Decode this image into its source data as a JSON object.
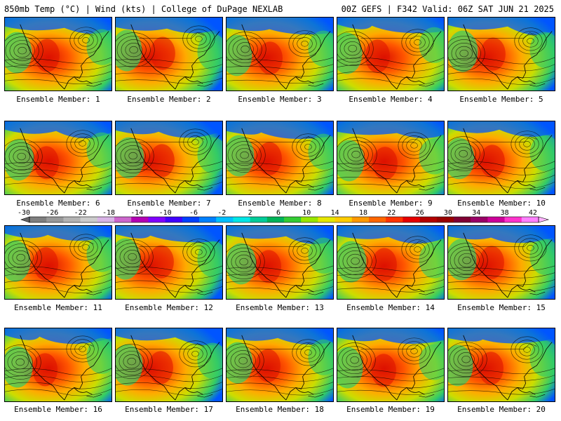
{
  "header": {
    "left_title": "850mb Temp (°C) | Wind (kts) | College of DuPage NEXLAB",
    "right_title": "00Z GEFS | F342 Valid: 06Z SAT JUN 21 2025"
  },
  "members": [
    "Ensemble Member: 1",
    "Ensemble Member: 2",
    "Ensemble Member: 3",
    "Ensemble Member: 4",
    "Ensemble Member: 5",
    "Ensemble Member: 6",
    "Ensemble Member: 7",
    "Ensemble Member: 8",
    "Ensemble Member: 9",
    "Ensemble Member: 10",
    "Ensemble Member: 11",
    "Ensemble Member: 12",
    "Ensemble Member: 13",
    "Ensemble Member: 14",
    "Ensemble Member: 15",
    "Ensemble Member: 16",
    "Ensemble Member: 17",
    "Ensemble Member: 18",
    "Ensemble Member: 19",
    "Ensemble Member: 20"
  ],
  "colorbar": {
    "ticks": [
      "-30",
      "-26",
      "-22",
      "-18",
      "-14",
      "-10",
      "-6",
      "-2",
      "2",
      "6",
      "10",
      "14",
      "18",
      "22",
      "26",
      "30",
      "34",
      "38",
      "42"
    ],
    "colors": [
      "#7f7f7f",
      "#999999",
      "#b3b3b3",
      "#cccccc",
      "#d9b3e6",
      "#cc66cc",
      "#b300b3",
      "#8000ff",
      "#4000ff",
      "#0040ff",
      "#0080ff",
      "#00bfff",
      "#00e6e6",
      "#00cc99",
      "#00b359",
      "#33cc33",
      "#99e600",
      "#e6e600",
      "#ffcc00",
      "#ff9900",
      "#ff6600",
      "#ff3300",
      "#e60000",
      "#b30000",
      "#990000",
      "#800033",
      "#990066",
      "#cc0099",
      "#ff33cc",
      "#ff80ff"
    ]
  },
  "map_colors": {
    "cold": "#0055ff",
    "cool": "#33cc66",
    "mild": "#ccdd00",
    "warm": "#ffaa00",
    "hot": "#ff5500",
    "very_hot": "#dd1100"
  }
}
